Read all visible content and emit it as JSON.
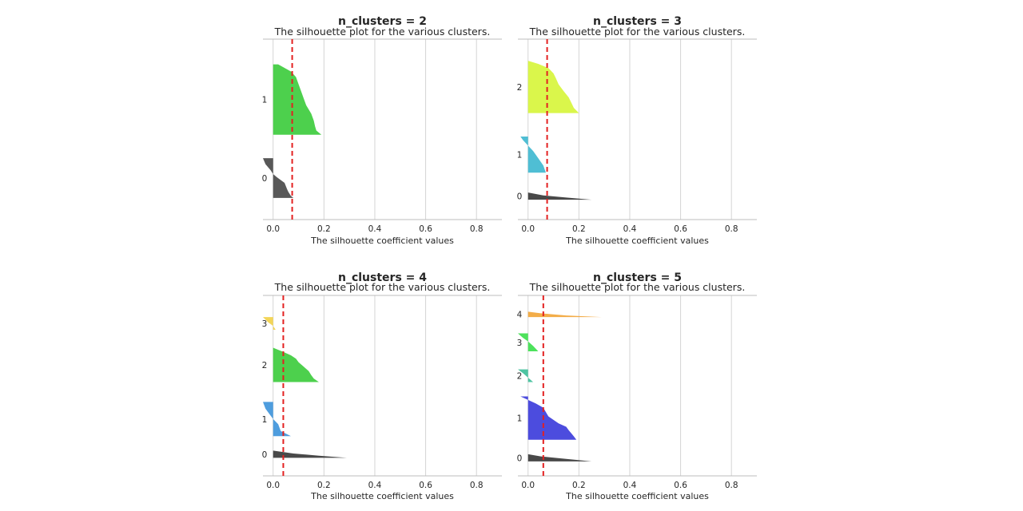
{
  "chart_data": [
    {
      "type": "area",
      "title": "n_clusters = 2",
      "subtitle": "The silhouette plot for the various clusters.",
      "xlabel": "The silhouette coefficient values",
      "xlim": [
        -0.04,
        0.9
      ],
      "xticks": [
        "0.0",
        "0.2",
        "0.4",
        "0.6",
        "0.8"
      ],
      "xtick_values": [
        0.0,
        0.2,
        0.4,
        0.6,
        0.8
      ],
      "avg_silhouette": 0.075,
      "ylim": [
        0,
        100
      ],
      "clusters": [
        {
          "label": "0",
          "color": "#4a4a4a",
          "y_start": 12,
          "profile": [
            [
              0.08,
              0
            ],
            [
              0.07,
              0.05
            ],
            [
              0.06,
              0.15
            ],
            [
              0.055,
              0.22
            ],
            [
              0.05,
              0.3
            ],
            [
              0.045,
              0.38
            ],
            [
              0.03,
              0.45
            ],
            [
              0.015,
              0.52
            ],
            [
              0.0,
              0.6
            ],
            [
              -0.01,
              0.7
            ],
            [
              -0.03,
              0.85
            ],
            [
              -0.04,
              1
            ]
          ],
          "height": 22
        },
        {
          "label": "1",
          "color": "#3ecc3e",
          "y_start": 47,
          "profile": [
            [
              0.19,
              0
            ],
            [
              0.17,
              0.06
            ],
            [
              0.165,
              0.12
            ],
            [
              0.16,
              0.2
            ],
            [
              0.15,
              0.3
            ],
            [
              0.13,
              0.42
            ],
            [
              0.12,
              0.52
            ],
            [
              0.11,
              0.62
            ],
            [
              0.1,
              0.72
            ],
            [
              0.09,
              0.82
            ],
            [
              0.07,
              0.9
            ],
            [
              0.02,
              1
            ]
          ],
          "height": 39
        }
      ]
    },
    {
      "type": "area",
      "title": "n_clusters = 3",
      "subtitle": "The silhouette plot for the various clusters.",
      "xlabel": "The silhouette coefficient values",
      "xlim": [
        -0.04,
        0.9
      ],
      "xticks": [
        "0.0",
        "0.2",
        "0.4",
        "0.6",
        "0.8"
      ],
      "xtick_values": [
        0.0,
        0.2,
        0.4,
        0.6,
        0.8
      ],
      "avg_silhouette": 0.075,
      "ylim": [
        0,
        100
      ],
      "clusters": [
        {
          "label": "0",
          "color": "#3a3a3a",
          "y_start": 11,
          "profile": [
            [
              0.25,
              0
            ],
            [
              0.15,
              0.3
            ],
            [
              0.06,
              0.6
            ],
            [
              0.0,
              1
            ]
          ],
          "height": 4
        },
        {
          "label": "1",
          "color": "#40b9d0",
          "y_start": 26,
          "profile": [
            [
              0.07,
              0
            ],
            [
              0.06,
              0.2
            ],
            [
              0.04,
              0.4
            ],
            [
              0.02,
              0.6
            ],
            [
              0.0,
              0.75
            ],
            [
              -0.02,
              0.9
            ],
            [
              -0.03,
              1
            ]
          ],
          "height": 20
        },
        {
          "label": "2",
          "color": "#d7f53c",
          "y_start": 59,
          "profile": [
            [
              0.2,
              0
            ],
            [
              0.18,
              0.1
            ],
            [
              0.17,
              0.2
            ],
            [
              0.16,
              0.3
            ],
            [
              0.14,
              0.42
            ],
            [
              0.12,
              0.55
            ],
            [
              0.11,
              0.66
            ],
            [
              0.1,
              0.76
            ],
            [
              0.08,
              0.86
            ],
            [
              0.04,
              0.94
            ],
            [
              0.0,
              1
            ]
          ],
          "height": 29
        }
      ]
    },
    {
      "type": "area",
      "title": "n_clusters = 4",
      "subtitle": "The silhouette plot for the various clusters.",
      "xlabel": "The silhouette coefficient values",
      "xlim": [
        -0.04,
        0.9
      ],
      "xticks": [
        "0.0",
        "0.2",
        "0.4",
        "0.6",
        "0.8"
      ],
      "xtick_values": [
        0.0,
        0.2,
        0.4,
        0.6,
        0.8
      ],
      "avg_silhouette": 0.04,
      "ylim": [
        0,
        100
      ],
      "clusters": [
        {
          "label": "0",
          "color": "#3a3a3a",
          "y_start": 10,
          "profile": [
            [
              0.29,
              0
            ],
            [
              0.18,
              0.3
            ],
            [
              0.08,
              0.6
            ],
            [
              0.0,
              1
            ]
          ],
          "height": 4
        },
        {
          "label": "1",
          "color": "#3f95db",
          "y_start": 22,
          "profile": [
            [
              0.07,
              0
            ],
            [
              0.03,
              0.15
            ],
            [
              0.02,
              0.35
            ],
            [
              0.0,
              0.5
            ],
            [
              -0.01,
              0.6
            ],
            [
              -0.03,
              0.8
            ],
            [
              -0.04,
              1
            ]
          ],
          "height": 19
        },
        {
          "label": "2",
          "color": "#3ecc3e",
          "y_start": 52,
          "profile": [
            [
              0.18,
              0
            ],
            [
              0.16,
              0.1
            ],
            [
              0.15,
              0.2
            ],
            [
              0.14,
              0.32
            ],
            [
              0.12,
              0.45
            ],
            [
              0.1,
              0.58
            ],
            [
              0.09,
              0.68
            ],
            [
              0.07,
              0.78
            ],
            [
              0.04,
              0.88
            ],
            [
              0.0,
              1
            ]
          ],
          "height": 19
        },
        {
          "label": "3",
          "color": "#f2d14a",
          "y_start": 81,
          "profile": [
            [
              0.01,
              0
            ],
            [
              0.0,
              0.3
            ],
            [
              -0.02,
              0.6
            ],
            [
              -0.04,
              1
            ]
          ],
          "height": 7
        }
      ]
    },
    {
      "type": "area",
      "title": "n_clusters = 5",
      "subtitle": "The silhouette plot for the various clusters.",
      "xlabel": "The silhouette coefficient values",
      "xlim": [
        -0.04,
        0.9
      ],
      "xticks": [
        "0.0",
        "0.2",
        "0.4",
        "0.6",
        "0.8"
      ],
      "xtick_values": [
        0.0,
        0.2,
        0.4,
        0.6,
        0.8
      ],
      "avg_silhouette": 0.06,
      "ylim": [
        0,
        100
      ],
      "clusters": [
        {
          "label": "0",
          "color": "#3a3a3a",
          "y_start": 8,
          "profile": [
            [
              0.25,
              0
            ],
            [
              0.15,
              0.35
            ],
            [
              0.05,
              0.7
            ],
            [
              0.0,
              1
            ]
          ],
          "height": 4
        },
        {
          "label": "1",
          "color": "#3d3ddb",
          "y_start": 20,
          "profile": [
            [
              0.19,
              0
            ],
            [
              0.18,
              0.08
            ],
            [
              0.17,
              0.15
            ],
            [
              0.16,
              0.22
            ],
            [
              0.15,
              0.3
            ],
            [
              0.12,
              0.38
            ],
            [
              0.1,
              0.46
            ],
            [
              0.08,
              0.54
            ],
            [
              0.07,
              0.64
            ],
            [
              0.06,
              0.74
            ],
            [
              0.03,
              0.84
            ],
            [
              0.0,
              0.92
            ],
            [
              -0.03,
              1
            ]
          ],
          "height": 24
        },
        {
          "label": "2",
          "color": "#3fbf9a",
          "y_start": 52,
          "profile": [
            [
              0.02,
              0
            ],
            [
              0.0,
              0.35
            ],
            [
              -0.02,
              0.7
            ],
            [
              -0.04,
              1
            ]
          ],
          "height": 7
        },
        {
          "label": "3",
          "color": "#3ee04e",
          "y_start": 69,
          "profile": [
            [
              0.04,
              0
            ],
            [
              0.02,
              0.3
            ],
            [
              0.0,
              0.55
            ],
            [
              -0.02,
              0.75
            ],
            [
              -0.04,
              1
            ]
          ],
          "height": 10
        },
        {
          "label": "4",
          "color": "#f2a63a",
          "y_start": 88,
          "profile": [
            [
              0.29,
              0
            ],
            [
              0.15,
              0.3
            ],
            [
              0.05,
              0.7
            ],
            [
              0.0,
              1
            ]
          ],
          "height": 3
        }
      ]
    }
  ]
}
